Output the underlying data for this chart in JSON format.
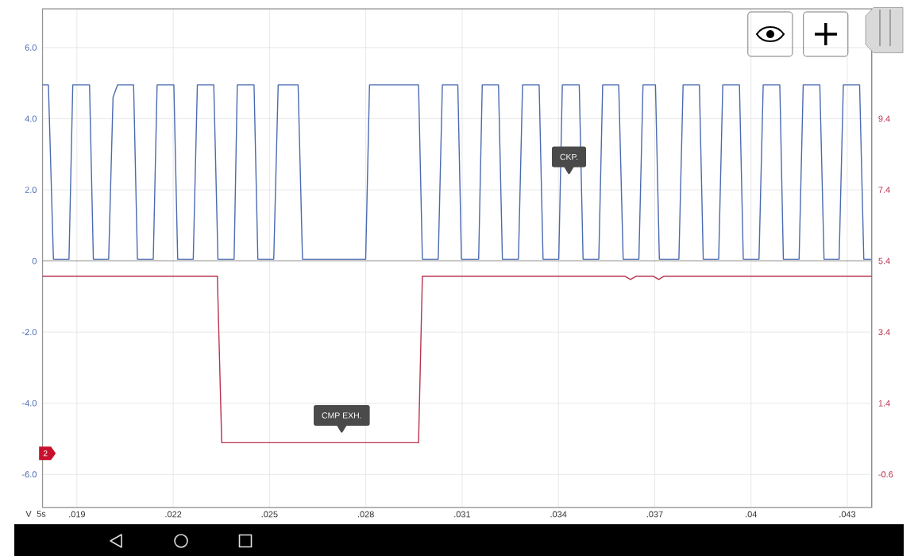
{
  "chart_data": {
    "type": "line",
    "xlabel": "5s",
    "ylabel": "V",
    "annotations": [
      "2"
    ],
    "xlim": [
      0.01793,
      0.04376
    ],
    "xticks": [
      {
        "value": 0.019,
        "label": ".019"
      },
      {
        "value": 0.022,
        "label": ".022"
      },
      {
        "value": 0.025,
        "label": ".025"
      },
      {
        "value": 0.028,
        "label": ".028"
      },
      {
        "value": 0.031,
        "label": ".031"
      },
      {
        "value": 0.034,
        "label": ".034"
      },
      {
        "value": 0.037,
        "label": ".037"
      },
      {
        "value": 0.04,
        "label": ".04"
      },
      {
        "value": 0.043,
        "label": ".043"
      }
    ],
    "ylim": [
      -6.93,
      7.09
    ],
    "yticks": [
      {
        "value": -6,
        "label": "-6.0"
      },
      {
        "value": -4,
        "label": "-4.0"
      },
      {
        "value": -2,
        "label": "-2.0"
      },
      0,
      {
        "value": 2,
        "label": "2.0"
      },
      {
        "value": 4,
        "label": "4.0"
      },
      {
        "value": 6,
        "label": "6.0"
      }
    ],
    "y2lim": [
      -1.53,
      12.49
    ],
    "y2ticks": [
      -0.6,
      1.4,
      3.4,
      5.4,
      7.4,
      9.4
    ],
    "grid": true,
    "ref_lines": [
      {
        "axis": "y",
        "value": 0,
        "color": "#8c8c8c"
      }
    ],
    "series": [
      {
        "name": "CKP.",
        "color": "#4a6ab0",
        "x": [
          0.01793,
          0.018112,
          0.018268,
          0.018753,
          0.018871,
          0.019393,
          0.019512,
          0.019989,
          0.020125,
          0.020264,
          0.020766,
          0.020885,
          0.021379,
          0.021498,
          0.02202,
          0.022139,
          0.022624,
          0.022752,
          0.023264,
          0.023393,
          0.023897,
          0.023996,
          0.024518,
          0.024637,
          0.025132,
          0.02527,
          0.025891,
          0.026027,
          0.027996,
          0.028115,
          0.029643,
          0.029762,
          0.030256,
          0.030385,
          0.030867,
          0.030979,
          0.031515,
          0.031627,
          0.032134,
          0.032255,
          0.032755,
          0.032883,
          0.0334,
          0.033521,
          0.034011,
          0.034122,
          0.034649,
          0.034768,
          0.035258,
          0.035379,
          0.035879,
          0.036017,
          0.036507,
          0.036635,
          0.037024,
          0.037145,
          0.037753,
          0.037884,
          0.038392,
          0.038512,
          0.038992,
          0.039121,
          0.03964,
          0.039759,
          0.040249,
          0.04038,
          0.040897,
          0.041008,
          0.041498,
          0.041626,
          0.042144,
          0.042275,
          0.042745,
          0.042876,
          0.043383,
          0.043514,
          0.04376
        ],
        "values": [
          4.95,
          4.95,
          0.05,
          0.05,
          4.95,
          4.95,
          0.05,
          0.05,
          4.6,
          4.95,
          4.95,
          0.05,
          0.05,
          4.95,
          4.95,
          0.05,
          0.05,
          4.95,
          4.95,
          0.05,
          0.05,
          4.95,
          4.95,
          0.05,
          0.05,
          4.95,
          4.95,
          0.05,
          0.05,
          4.95,
          4.95,
          0.05,
          0.05,
          4.95,
          4.95,
          0.05,
          0.05,
          4.95,
          4.95,
          0.05,
          0.05,
          4.95,
          4.95,
          0.05,
          0.05,
          4.95,
          4.95,
          0.05,
          0.05,
          4.95,
          4.95,
          0.05,
          0.05,
          4.95,
          4.95,
          0.05,
          0.05,
          4.95,
          4.95,
          0.05,
          0.05,
          4.95,
          4.95,
          0.05,
          0.05,
          4.95,
          4.95,
          0.05,
          0.05,
          4.95,
          4.95,
          0.05,
          0.05,
          4.95,
          4.95,
          0.05,
          0.05
        ]
      },
      {
        "name": "CMP EXH.",
        "color": "#b8324e",
        "axis": "y2",
        "x": [
          0.01793,
          0.023375,
          0.023511,
          0.029643,
          0.029762,
          0.036074,
          0.036247,
          0.036415,
          0.036959,
          0.037125,
          0.037281,
          0.04376
        ],
        "values": [
          4.97,
          4.97,
          0.29,
          0.29,
          4.97,
          4.97,
          4.88,
          4.97,
          4.97,
          4.88,
          4.97,
          4.97
        ]
      }
    ]
  }
}
